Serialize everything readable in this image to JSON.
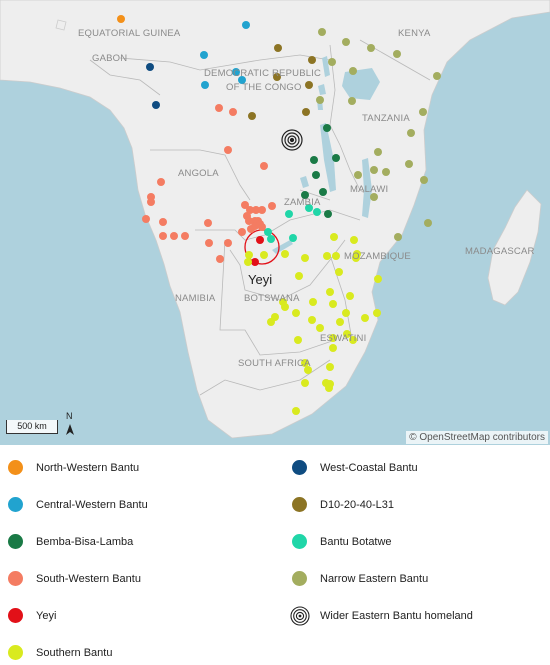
{
  "map": {
    "attribution": "© OpenStreetMap contributors",
    "scale_label": "500 km",
    "north_label": "N",
    "focus_label": "Yeyi",
    "country_labels": {
      "eq_guinea": "EQUATORIAL GUINEA",
      "gabon": "GABON",
      "drc_1": "DEMOCRATIC REPUBLIC",
      "drc_2": "OF THE CONGO",
      "kenya": "KENYA",
      "tanzania": "TANZANIA",
      "angola": "ANGOLA",
      "zambia": "ZAMBIA",
      "malawi": "MALAWI",
      "mozambique": "MOZAMBIQUE",
      "madagascar": "MADAGASCAR",
      "namibia": "NAMIBIA",
      "botswana": "BOTSWANA",
      "eswatini": "ESWATINI",
      "south_africa": "SOUTH AFRICA"
    }
  },
  "colors": {
    "north_western": "#f39019",
    "central_western": "#21a3cf",
    "bemba": "#1a7a46",
    "south_western": "#f47c62",
    "yeyi": "#e21018",
    "southern": "#d9ea1f",
    "west_coastal": "#0f4c81",
    "d10": "#8c7424",
    "botatwe": "#20d6a8",
    "narrow_eastern": "#a3ad5f"
  },
  "legend": {
    "north_western": "North-Western Bantu",
    "central_western": "Central-Western Bantu",
    "bemba": "Bemba-Bisa-Lamba",
    "south_western": "South-Western Bantu",
    "yeyi": "Yeyi",
    "southern": "Southern Bantu",
    "west_coastal": "West-Coastal Bantu",
    "d10": "D10-20-40-L31",
    "botatwe": "Bantu Botatwe",
    "narrow_eastern": "Narrow Eastern Bantu",
    "homeland": "Wider Eastern Bantu homeland"
  }
}
